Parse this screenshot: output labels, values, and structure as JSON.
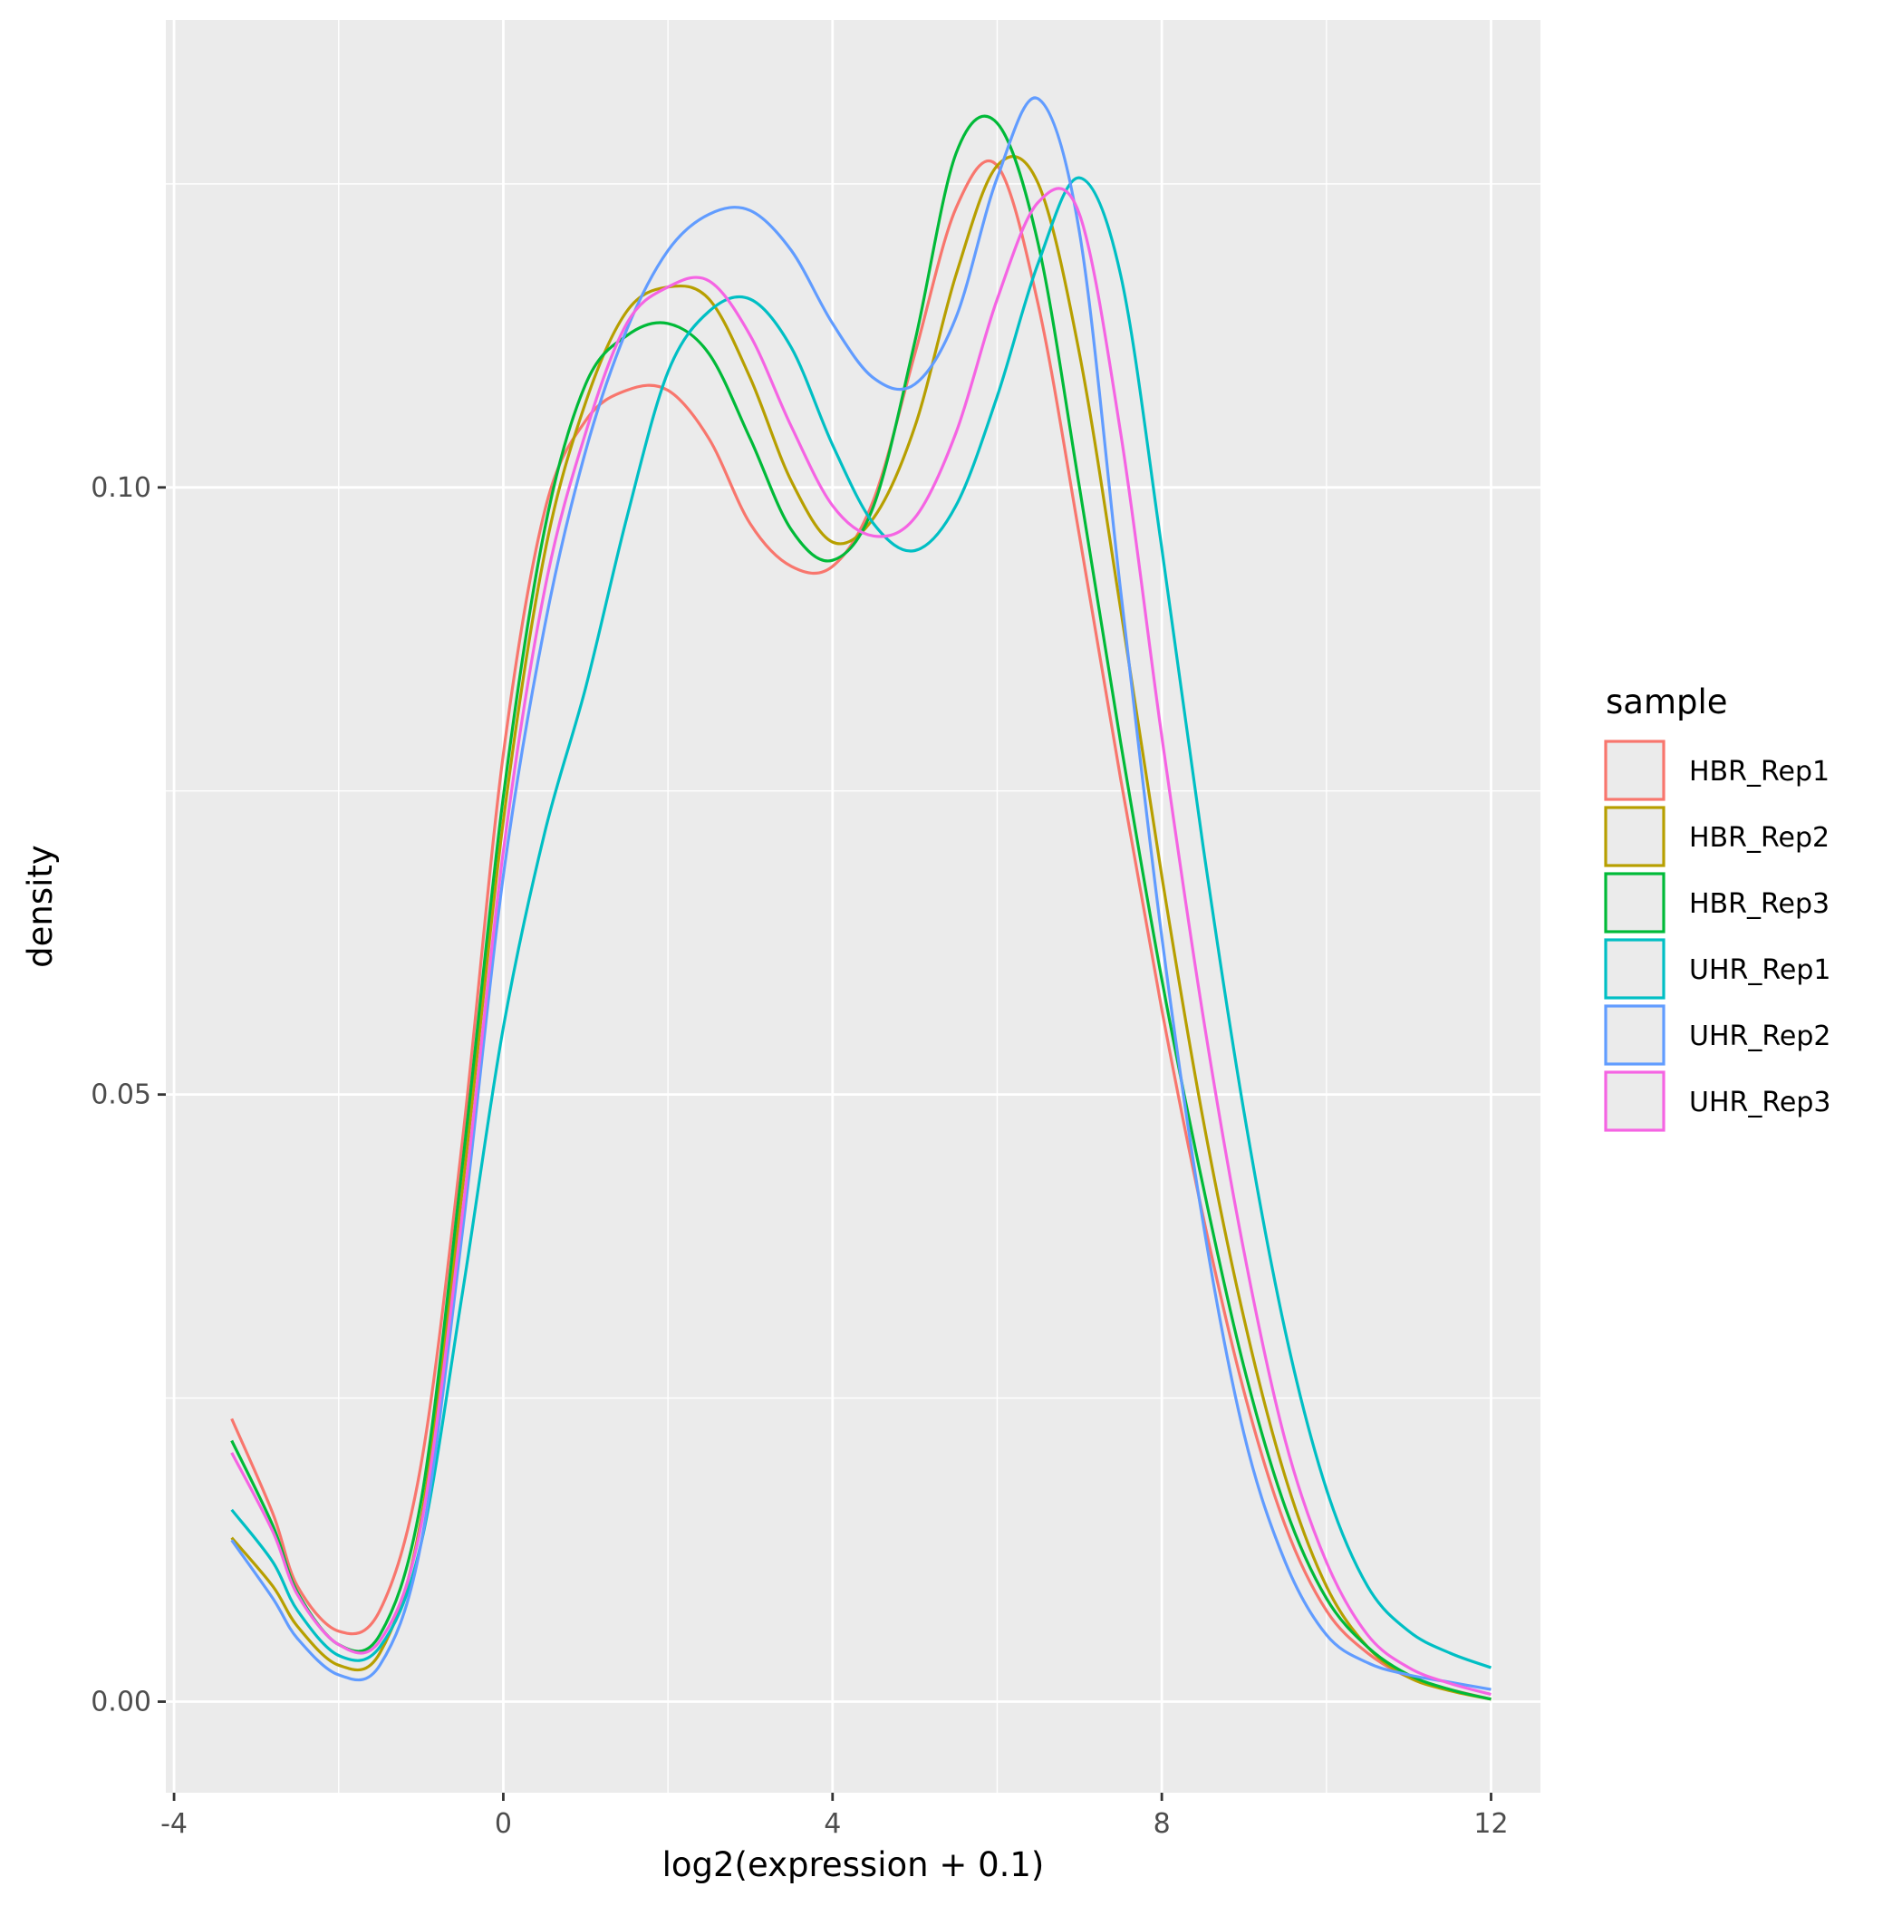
{
  "chart_data": {
    "type": "line",
    "title": "",
    "xlabel": "log2(expression + 0.1)",
    "ylabel": "density",
    "xlim": [
      -4.1,
      12.6
    ],
    "ylim": [
      -0.0075,
      0.1385
    ],
    "xticks": [
      -4,
      0,
      4,
      8,
      12
    ],
    "xtick_labels": [
      "-4",
      "0",
      "4",
      "8",
      "12"
    ],
    "yticks": [
      0.0,
      0.05,
      0.1
    ],
    "ytick_labels": [
      "0.00",
      "0.05",
      "0.10"
    ],
    "grid": true,
    "panel_background": "#ebebeb",
    "legend": {
      "title": "sample",
      "position": "right"
    },
    "series": [
      {
        "name": "HBR_Rep1",
        "color": "#f8766d",
        "x": [
          -3.3,
          -2.8,
          -2.5,
          -2,
          -1.5,
          -1,
          -0.5,
          0,
          0.5,
          1,
          1.5,
          2,
          2.5,
          3,
          3.5,
          4,
          4.5,
          5,
          5.5,
          6,
          6.5,
          7,
          7.5,
          8,
          8.5,
          9,
          9.5,
          10,
          10.5,
          11,
          11.5,
          12
        ],
        "y": [
          0.0233,
          0.0155,
          0.0095,
          0.0058,
          0.0075,
          0.0195,
          0.046,
          0.078,
          0.098,
          0.1055,
          0.108,
          0.108,
          0.104,
          0.097,
          0.0935,
          0.0935,
          0.099,
          0.111,
          0.123,
          0.1265,
          0.115,
          0.096,
          0.076,
          0.057,
          0.04,
          0.0255,
          0.0145,
          0.0075,
          0.004,
          0.002,
          0.001,
          0.0002
        ]
      },
      {
        "name": "HBR_Rep2",
        "color": "#b79f00",
        "x": [
          -3.3,
          -2.8,
          -2.5,
          -2,
          -1.5,
          -1,
          -0.5,
          0,
          0.5,
          1,
          1.5,
          2,
          2.5,
          3,
          3.5,
          4,
          4.5,
          5,
          5.5,
          6,
          6.5,
          7,
          7.5,
          8,
          8.5,
          9,
          9.5,
          10,
          10.5,
          11,
          11.5,
          12
        ],
        "y": [
          0.0135,
          0.0095,
          0.0062,
          0.003,
          0.004,
          0.015,
          0.042,
          0.0725,
          0.0945,
          0.107,
          0.1145,
          0.1165,
          0.1155,
          0.109,
          0.1005,
          0.0955,
          0.0975,
          0.105,
          0.1175,
          0.1265,
          0.125,
          0.111,
          0.09,
          0.068,
          0.048,
          0.0315,
          0.0185,
          0.0095,
          0.0045,
          0.002,
          0.0009,
          0.0002
        ]
      },
      {
        "name": "HBR_Rep3",
        "color": "#00ba38",
        "x": [
          -3.3,
          -2.8,
          -2.5,
          -2,
          -1.5,
          -1,
          -0.5,
          0,
          0.5,
          1,
          1.5,
          2,
          2.5,
          3,
          3.5,
          4,
          4.5,
          5,
          5.5,
          6,
          6.5,
          7,
          7.5,
          8,
          8.5,
          9,
          9.5,
          10,
          10.5,
          11,
          11.5,
          12
        ],
        "y": [
          0.0215,
          0.0145,
          0.009,
          0.0047,
          0.0055,
          0.0165,
          0.044,
          0.0745,
          0.0965,
          0.1085,
          0.1125,
          0.1135,
          0.111,
          0.104,
          0.0965,
          0.094,
          0.0985,
          0.112,
          0.1275,
          0.13,
          0.12,
          0.1,
          0.079,
          0.0595,
          0.0425,
          0.0275,
          0.016,
          0.0085,
          0.0045,
          0.0022,
          0.001,
          0.0002
        ]
      },
      {
        "name": "UHR_Rep1",
        "color": "#00bfc4",
        "x": [
          -3.3,
          -2.8,
          -2.5,
          -2,
          -1.5,
          -1,
          -0.5,
          0,
          0.5,
          1,
          1.5,
          2,
          2.5,
          3,
          3.5,
          4,
          4.5,
          5,
          5.5,
          6,
          6.5,
          7,
          7.5,
          8,
          8.5,
          9,
          9.5,
          10,
          10.5,
          11,
          11.5,
          12
        ],
        "y": [
          0.0158,
          0.0115,
          0.0075,
          0.0038,
          0.0045,
          0.013,
          0.0335,
          0.0555,
          0.0715,
          0.0835,
          0.0975,
          0.1095,
          0.1145,
          0.1155,
          0.1115,
          0.1035,
          0.097,
          0.0948,
          0.0985,
          0.1075,
          0.1185,
          0.1255,
          0.1175,
          0.095,
          0.0705,
          0.0485,
          0.0305,
          0.0175,
          0.0095,
          0.0058,
          0.004,
          0.0028
        ]
      },
      {
        "name": "UHR_Rep2",
        "color": "#619cff",
        "x": [
          -3.3,
          -2.8,
          -2.5,
          -2,
          -1.5,
          -1,
          -0.5,
          0,
          0.5,
          1,
          1.5,
          2,
          2.5,
          3,
          3.5,
          4,
          4.5,
          5,
          5.5,
          6,
          6.5,
          7,
          7.5,
          8,
          8.5,
          9,
          9.5,
          10,
          10.5,
          11,
          11.5,
          12
        ],
        "y": [
          0.0133,
          0.0085,
          0.0052,
          0.0022,
          0.003,
          0.013,
          0.0385,
          0.068,
          0.0885,
          0.103,
          0.113,
          0.1195,
          0.1225,
          0.1228,
          0.1195,
          0.1135,
          0.109,
          0.1085,
          0.114,
          0.1255,
          0.132,
          0.121,
          0.0915,
          0.063,
          0.0395,
          0.022,
          0.0115,
          0.0055,
          0.0032,
          0.0022,
          0.0016,
          0.001
        ]
      },
      {
        "name": "UHR_Rep3",
        "color": "#f564e3",
        "x": [
          -3.3,
          -2.8,
          -2.5,
          -2,
          -1.5,
          -1,
          -0.5,
          0,
          0.5,
          1,
          1.5,
          2,
          2.5,
          3,
          3.5,
          4,
          4.5,
          5,
          5.5,
          6,
          6.5,
          7,
          7.5,
          8,
          8.5,
          9,
          9.5,
          10,
          10.5,
          11,
          11.5,
          12
        ],
        "y": [
          0.0205,
          0.014,
          0.0088,
          0.0047,
          0.005,
          0.0145,
          0.04,
          0.07,
          0.0915,
          0.1045,
          0.1135,
          0.1165,
          0.117,
          0.1125,
          0.105,
          0.0985,
          0.096,
          0.0975,
          0.1045,
          0.1155,
          0.1235,
          0.1225,
          0.1045,
          0.0795,
          0.0565,
          0.037,
          0.0215,
          0.0115,
          0.0055,
          0.0028,
          0.0015,
          0.0006
        ]
      }
    ]
  }
}
